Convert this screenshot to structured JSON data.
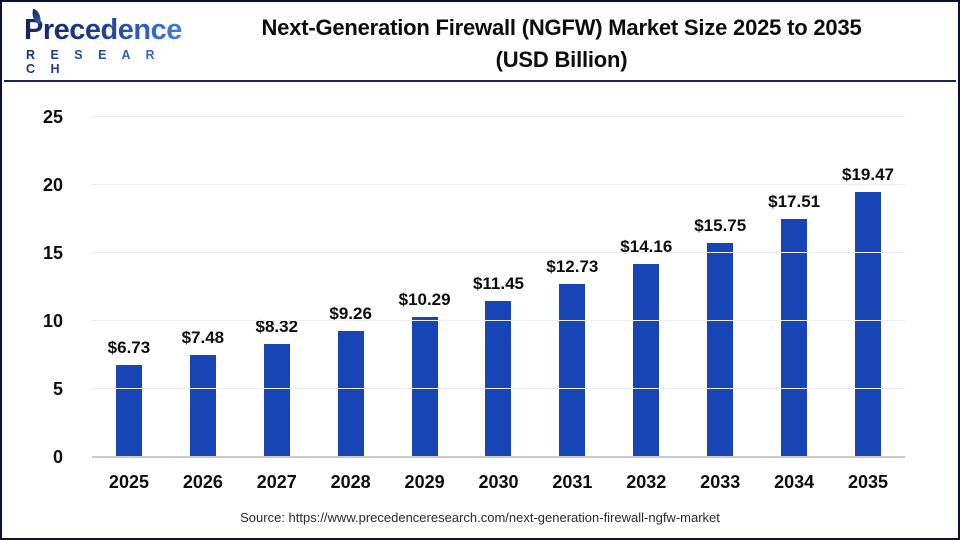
{
  "header": {
    "logo": {
      "name": "Precedence",
      "sub": "R E S E A R C H"
    },
    "title_line1": "Next-Generation Firewall (NGFW) Market Size 2025 to 2035",
    "title_line2": "(USD Billion)"
  },
  "footer": {
    "source": "Source: https://www.precedenceresearch.com/next-generation-firewall-ngfw-market"
  },
  "chart_data": {
    "type": "bar",
    "title": "Next-Generation Firewall (NGFW) Market Size 2025 to 2035 (USD Billion)",
    "categories": [
      "2025",
      "2026",
      "2027",
      "2028",
      "2029",
      "2030",
      "2031",
      "2032",
      "2033",
      "2034",
      "2035"
    ],
    "values": [
      6.73,
      7.48,
      8.32,
      9.26,
      10.29,
      11.45,
      12.73,
      14.16,
      15.75,
      17.51,
      19.47
    ],
    "labels": [
      "$6.73",
      "$7.48",
      "$8.32",
      "$9.26",
      "$10.29",
      "$11.45",
      "$12.73",
      "$14.16",
      "$15.75",
      "$17.51",
      "$19.47"
    ],
    "xlabel": "",
    "ylabel": "",
    "ylim": [
      0,
      25
    ],
    "yticks": [
      0,
      5,
      10,
      15,
      20,
      25
    ],
    "grid": true,
    "legend": "none",
    "bar_color": "#1745b5"
  }
}
